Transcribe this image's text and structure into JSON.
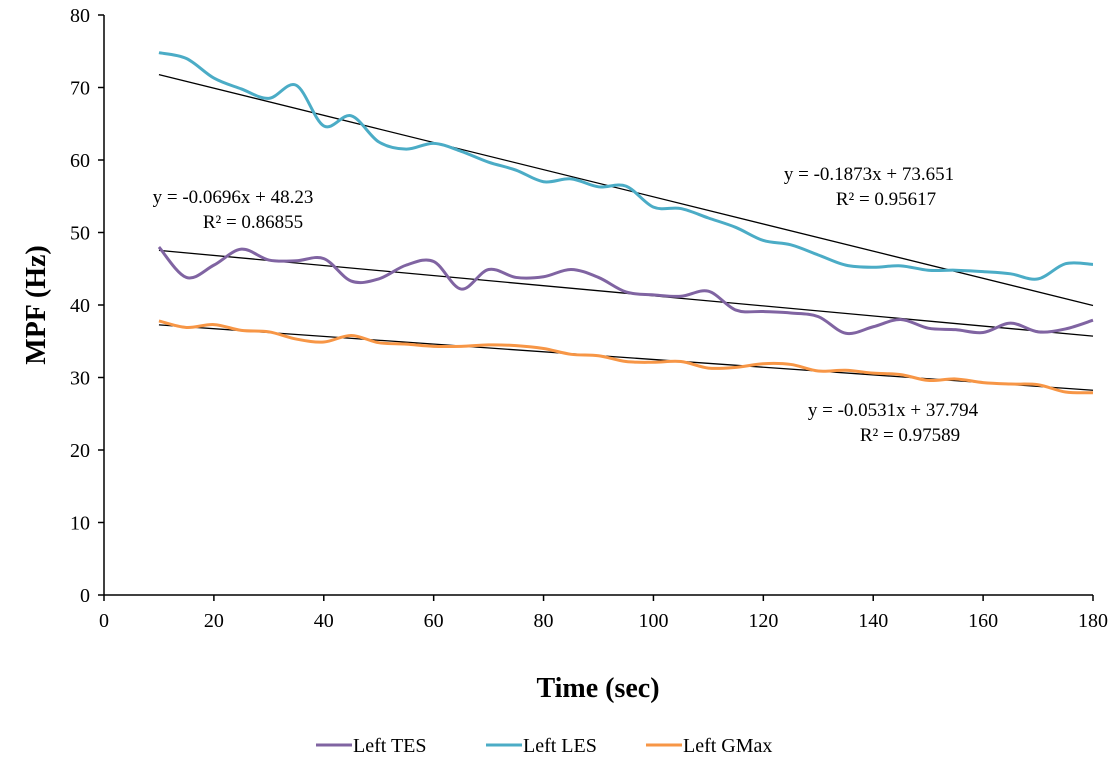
{
  "chart_data": {
    "type": "line",
    "title": "",
    "xlabel": "Time (sec)",
    "ylabel": "MPF (Hz)",
    "xlim": [
      0,
      180
    ],
    "ylim": [
      0,
      80
    ],
    "x_ticks": [
      0,
      20,
      40,
      60,
      80,
      100,
      120,
      140,
      160,
      180
    ],
    "y_ticks": [
      0,
      10,
      20,
      30,
      40,
      50,
      60,
      70,
      80
    ],
    "grid": false,
    "legend_position": "bottom",
    "series": [
      {
        "name": "Left TES",
        "color": "#8064A2",
        "x": [
          10,
          15,
          20,
          25,
          30,
          35,
          40,
          45,
          50,
          55,
          60,
          65,
          70,
          75,
          80,
          85,
          90,
          95,
          100,
          105,
          110,
          115,
          120,
          125,
          130,
          135,
          140,
          145,
          150,
          155,
          160,
          165,
          170,
          175,
          180
        ],
        "y": [
          48,
          43.8,
          45.5,
          47.7,
          46.2,
          46.1,
          46.4,
          43.3,
          43.6,
          45.5,
          46,
          42.2,
          44.9,
          43.8,
          43.9,
          44.9,
          43.8,
          41.8,
          41.4,
          41.2,
          41.9,
          39.3,
          39.1,
          38.9,
          38.4,
          36.1,
          37,
          38,
          36.8,
          36.6,
          36.2,
          37.5,
          36.3,
          36.7,
          37.9
        ]
      },
      {
        "name": "Left LES",
        "color": "#4BACC6",
        "x": [
          10,
          15,
          20,
          25,
          30,
          35,
          40,
          45,
          50,
          55,
          60,
          65,
          70,
          75,
          80,
          85,
          90,
          95,
          100,
          105,
          110,
          115,
          120,
          125,
          130,
          135,
          140,
          145,
          150,
          155,
          160,
          165,
          170,
          175,
          180
        ],
        "y": [
          74.8,
          74,
          71.3,
          69.8,
          68.5,
          70.3,
          64.7,
          66.1,
          62.5,
          61.5,
          62.3,
          61.2,
          59.7,
          58.6,
          57,
          57.4,
          56.3,
          56.4,
          53.5,
          53.3,
          52,
          50.7,
          48.9,
          48.3,
          46.9,
          45.5,
          45.2,
          45.4,
          44.8,
          44.8,
          44.6,
          44.3,
          43.6,
          45.7,
          45.6
        ]
      },
      {
        "name": "Left GMax",
        "color": "#F79646",
        "x": [
          10,
          15,
          20,
          25,
          30,
          35,
          40,
          45,
          50,
          55,
          60,
          65,
          70,
          75,
          80,
          85,
          90,
          95,
          100,
          105,
          110,
          115,
          120,
          125,
          130,
          135,
          140,
          145,
          150,
          155,
          160,
          165,
          170,
          175,
          180
        ],
        "y": [
          37.8,
          36.9,
          37.3,
          36.5,
          36.3,
          35.3,
          34.9,
          35.8,
          34.8,
          34.6,
          34.3,
          34.3,
          34.5,
          34.4,
          34,
          33.2,
          33,
          32.2,
          32.1,
          32.2,
          31.3,
          31.4,
          31.9,
          31.8,
          30.9,
          31,
          30.6,
          30.4,
          29.6,
          29.8,
          29.3,
          29.1,
          29,
          28,
          27.9
        ]
      }
    ],
    "trendlines": [
      {
        "series": "Left TES",
        "slope": -0.0696,
        "intercept": 48.23,
        "equation": "y = -0.0696x + 48.23",
        "r2_text": "R² = 0.86855"
      },
      {
        "series": "Left LES",
        "slope": -0.1873,
        "intercept": 73.651,
        "equation": "y = -0.1873x + 73.651",
        "r2_text": "R² = 0.95617"
      },
      {
        "series": "Left GMax",
        "slope": -0.0531,
        "intercept": 37.794,
        "equation": "y = -0.0531x + 37.794",
        "r2_text": "R² = 0.97589"
      }
    ]
  }
}
